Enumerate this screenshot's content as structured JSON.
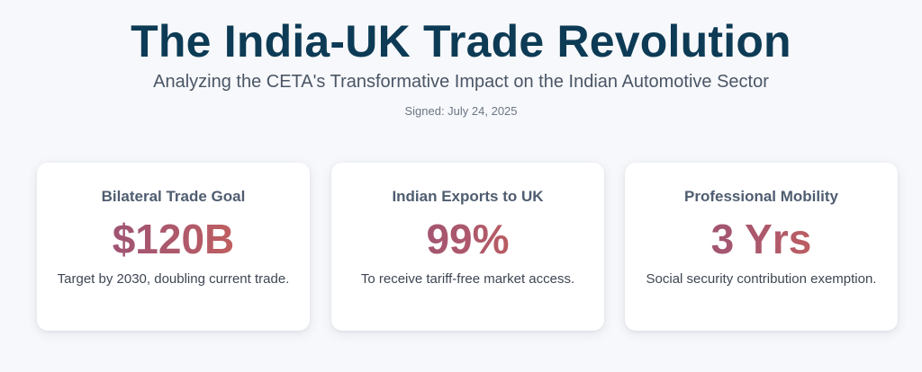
{
  "header": {
    "title": "The India-UK Trade Revolution",
    "subtitle": "Analyzing the CETA's Transformative Impact on the Indian Automotive Sector",
    "signed": "Signed: July 24, 2025"
  },
  "colors": {
    "title": "#0d3b55",
    "value_gradient_start": "#8e4f7a",
    "value_gradient_end": "#d9684e",
    "card_background": "#ffffff",
    "page_background": "#f7f8fb"
  },
  "cards": [
    {
      "label": "Bilateral Trade Goal",
      "value": "$120B",
      "description": "Target by 2030, doubling current trade."
    },
    {
      "label": "Indian Exports to UK",
      "value": "99%",
      "description": "To receive tariff-free market access."
    },
    {
      "label": "Professional Mobility",
      "value": "3 Yrs",
      "description": "Social security contribution exemption."
    }
  ]
}
